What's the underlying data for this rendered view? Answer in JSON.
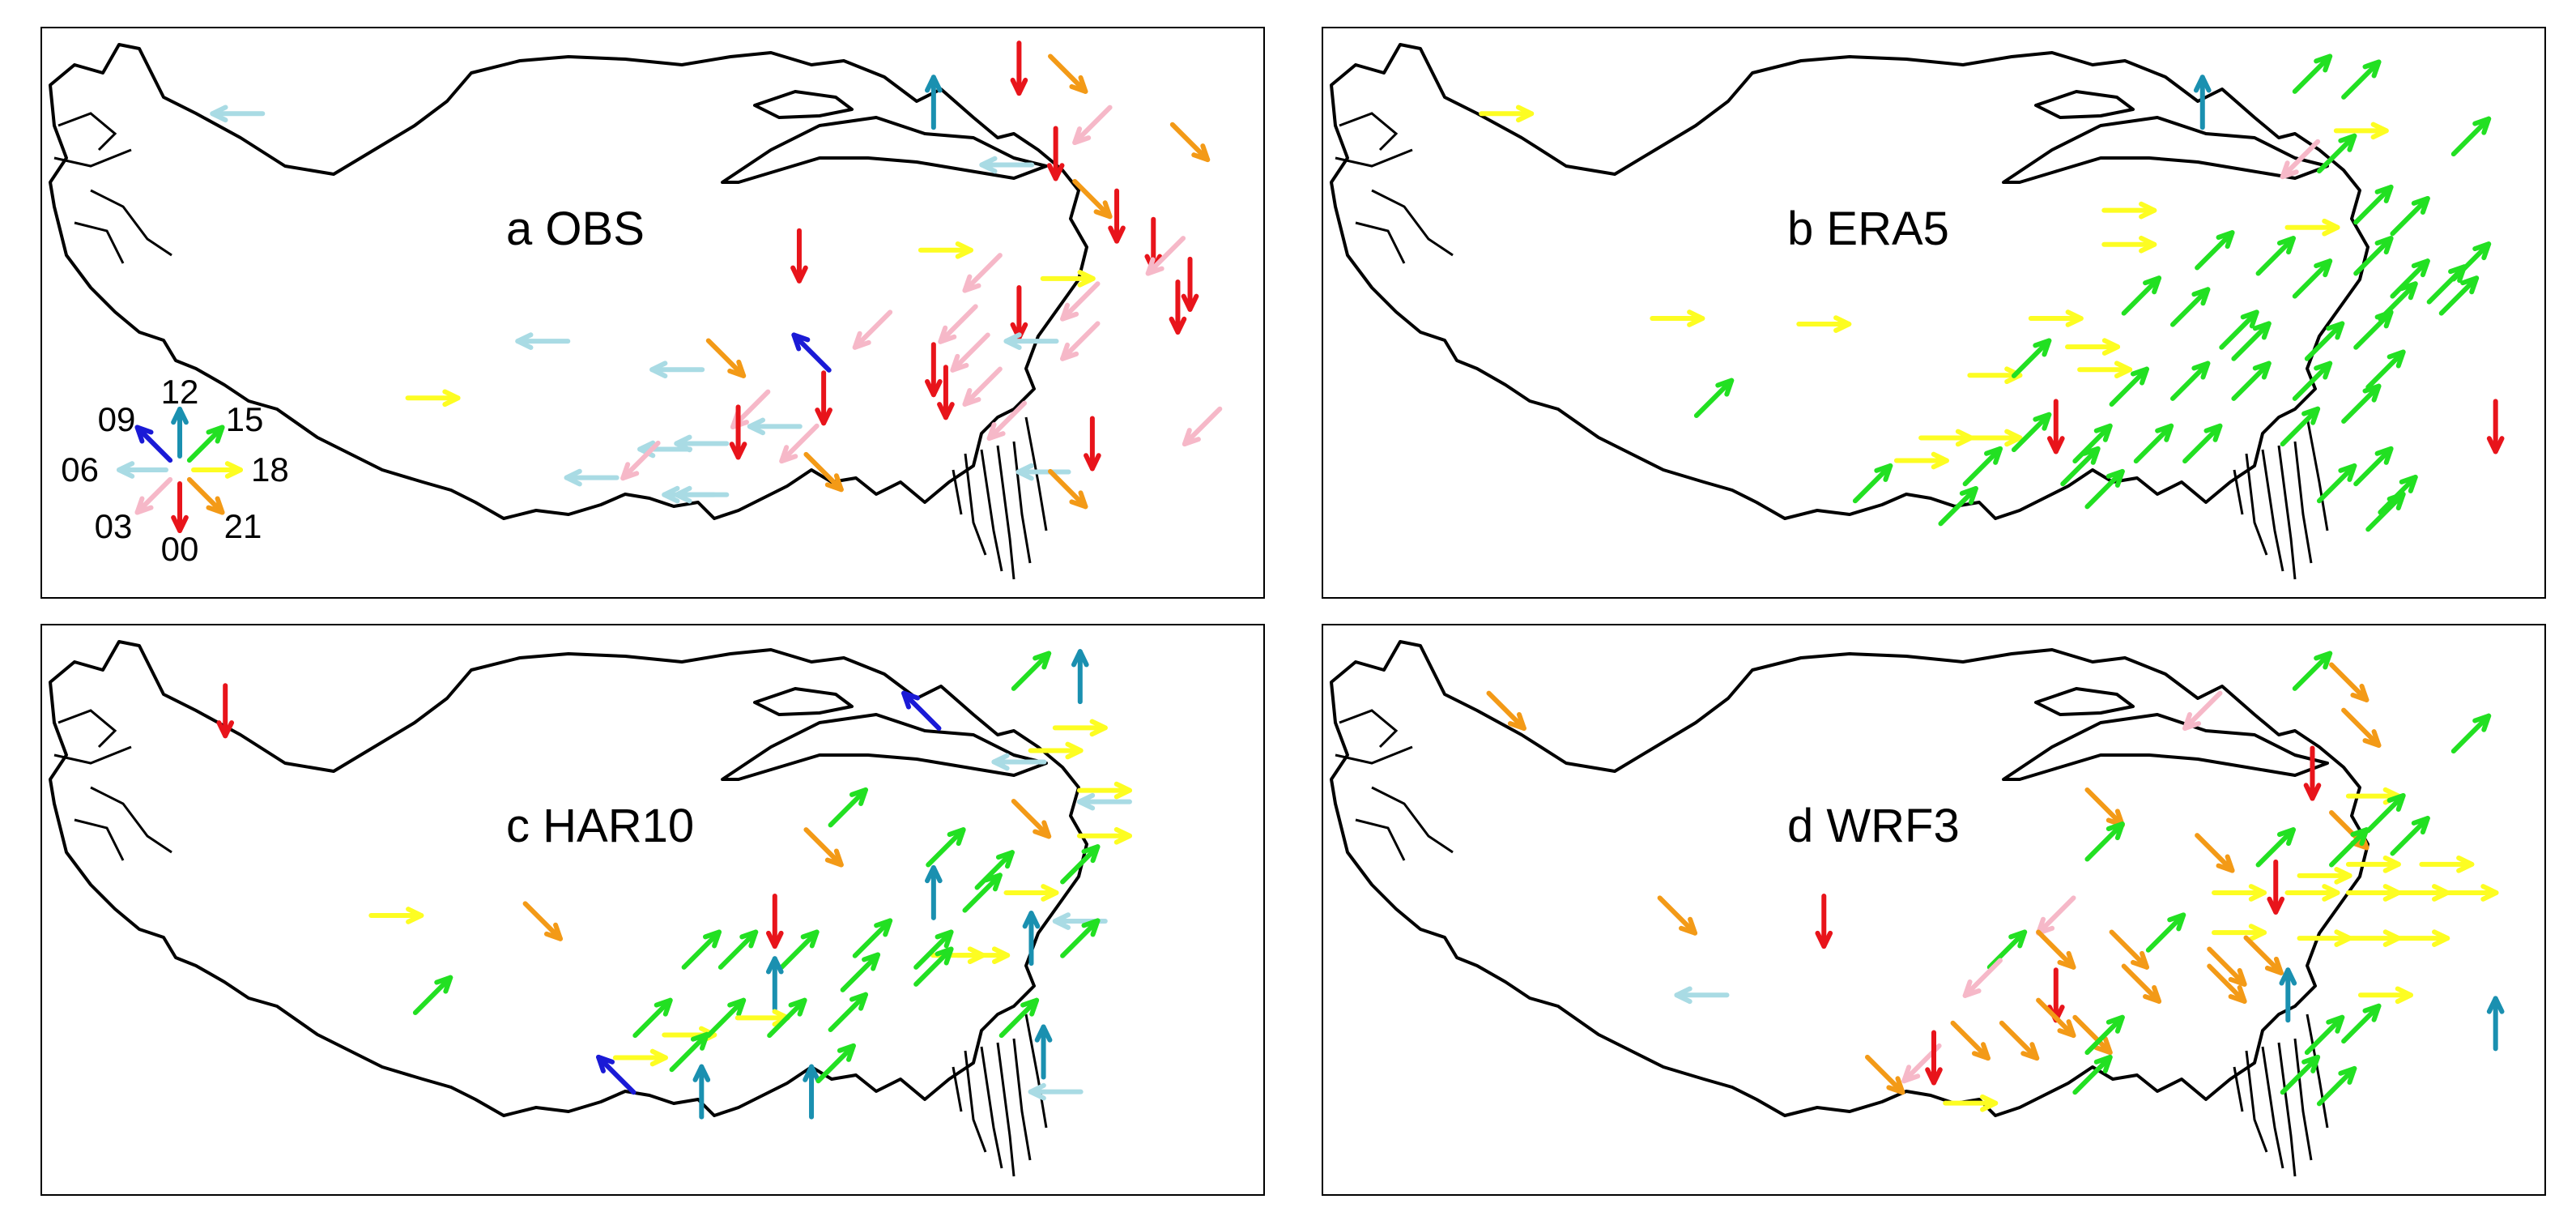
{
  "colors": {
    "00": "#e8141b",
    "03": "#f6b8c8",
    "06": "#a9dbe4",
    "09": "#1a1ad6",
    "12": "#1a90b0",
    "15": "#22e022",
    "18": "#fdfd22",
    "21": "#f39a17"
  },
  "legend": {
    "items": [
      {
        "hour": "00",
        "label": "00"
      },
      {
        "hour": "03",
        "label": "03"
      },
      {
        "hour": "06",
        "label": "06"
      },
      {
        "hour": "09",
        "label": "09"
      },
      {
        "hour": "12",
        "label": "12"
      },
      {
        "hour": "15",
        "label": "15"
      },
      {
        "hour": "18",
        "label": "18"
      },
      {
        "hour": "21",
        "label": "21"
      }
    ]
  },
  "panels": [
    {
      "id": "a",
      "title": "a OBS",
      "arrows": [
        [
          "06",
          0.16,
          0.15
        ],
        [
          "12",
          0.73,
          0.13
        ],
        [
          "00",
          0.8,
          0.07
        ],
        [
          "21",
          0.84,
          0.08
        ],
        [
          "03",
          0.86,
          0.17
        ],
        [
          "21",
          0.94,
          0.2
        ],
        [
          "00",
          0.83,
          0.22
        ],
        [
          "06",
          0.79,
          0.24
        ],
        [
          "21",
          0.86,
          0.3
        ],
        [
          "00",
          0.88,
          0.33
        ],
        [
          "00",
          0.91,
          0.38
        ],
        [
          "03",
          0.92,
          0.4
        ],
        [
          "00",
          0.62,
          0.4
        ],
        [
          "18",
          0.74,
          0.39
        ],
        [
          "03",
          0.77,
          0.43
        ],
        [
          "00",
          0.94,
          0.45
        ],
        [
          "18",
          0.84,
          0.44
        ],
        [
          "03",
          0.85,
          0.48
        ],
        [
          "00",
          0.8,
          0.5
        ],
        [
          "00",
          0.93,
          0.49
        ],
        [
          "06",
          0.41,
          0.55
        ],
        [
          "03",
          0.75,
          0.52
        ],
        [
          "03",
          0.68,
          0.53
        ],
        [
          "09",
          0.63,
          0.57
        ],
        [
          "21",
          0.56,
          0.58
        ],
        [
          "03",
          0.76,
          0.57
        ],
        [
          "06",
          0.81,
          0.55
        ],
        [
          "03",
          0.85,
          0.55
        ],
        [
          "06",
          0.52,
          0.6
        ],
        [
          "00",
          0.73,
          0.6
        ],
        [
          "00",
          0.64,
          0.65
        ],
        [
          "03",
          0.77,
          0.63
        ],
        [
          "03",
          0.58,
          0.67
        ],
        [
          "00",
          0.74,
          0.64
        ],
        [
          "06",
          0.6,
          0.7
        ],
        [
          "00",
          0.57,
          0.71
        ],
        [
          "06",
          0.54,
          0.73
        ],
        [
          "18",
          0.32,
          0.65
        ],
        [
          "03",
          0.79,
          0.69
        ],
        [
          "03",
          0.95,
          0.7
        ],
        [
          "06",
          0.51,
          0.74
        ],
        [
          "03",
          0.62,
          0.73
        ],
        [
          "00",
          0.86,
          0.73
        ],
        [
          "21",
          0.64,
          0.78
        ],
        [
          "06",
          0.82,
          0.78
        ],
        [
          "03",
          0.49,
          0.76
        ],
        [
          "06",
          0.45,
          0.79
        ],
        [
          "06",
          0.53,
          0.82
        ],
        [
          "21",
          0.84,
          0.81
        ],
        [
          "06",
          0.54,
          0.82
        ]
      ]
    },
    {
      "id": "b",
      "title": "b ERA5",
      "arrows": [
        [
          "18",
          0.15,
          0.15
        ],
        [
          "12",
          0.72,
          0.13
        ],
        [
          "15",
          0.81,
          0.08
        ],
        [
          "15",
          0.85,
          0.09
        ],
        [
          "18",
          0.85,
          0.18
        ],
        [
          "15",
          0.94,
          0.19
        ],
        [
          "03",
          0.8,
          0.23
        ],
        [
          "15",
          0.83,
          0.22
        ],
        [
          "18",
          0.66,
          0.32
        ],
        [
          "15",
          0.86,
          0.31
        ],
        [
          "15",
          0.89,
          0.33
        ],
        [
          "18",
          0.81,
          0.35
        ],
        [
          "18",
          0.66,
          0.38
        ],
        [
          "15",
          0.73,
          0.39
        ],
        [
          "15",
          0.78,
          0.4
        ],
        [
          "15",
          0.81,
          0.44
        ],
        [
          "15",
          0.86,
          0.4
        ],
        [
          "15",
          0.89,
          0.44
        ],
        [
          "15",
          0.92,
          0.45
        ],
        [
          "15",
          0.94,
          0.41
        ],
        [
          "18",
          0.29,
          0.51
        ],
        [
          "18",
          0.41,
          0.52
        ],
        [
          "18",
          0.6,
          0.51
        ],
        [
          "15",
          0.67,
          0.47
        ],
        [
          "15",
          0.71,
          0.49
        ],
        [
          "15",
          0.75,
          0.53
        ],
        [
          "15",
          0.82,
          0.55
        ],
        [
          "15",
          0.86,
          0.53
        ],
        [
          "15",
          0.88,
          0.48
        ],
        [
          "15",
          0.93,
          0.47
        ],
        [
          "18",
          0.63,
          0.56
        ],
        [
          "15",
          0.76,
          0.55
        ],
        [
          "18",
          0.55,
          0.61
        ],
        [
          "15",
          0.58,
          0.58
        ],
        [
          "18",
          0.64,
          0.6
        ],
        [
          "15",
          0.66,
          0.63
        ],
        [
          "15",
          0.71,
          0.62
        ],
        [
          "15",
          0.76,
          0.62
        ],
        [
          "15",
          0.81,
          0.62
        ],
        [
          "15",
          0.87,
          0.6
        ],
        [
          "15",
          0.32,
          0.65
        ],
        [
          "18",
          0.51,
          0.72
        ],
        [
          "18",
          0.55,
          0.72
        ],
        [
          "00",
          0.6,
          0.7
        ],
        [
          "15",
          0.58,
          0.71
        ],
        [
          "15",
          0.63,
          0.73
        ],
        [
          "15",
          0.68,
          0.73
        ],
        [
          "15",
          0.72,
          0.73
        ],
        [
          "15",
          0.8,
          0.7
        ],
        [
          "15",
          0.85,
          0.66
        ],
        [
          "00",
          0.96,
          0.7
        ],
        [
          "18",
          0.49,
          0.76
        ],
        [
          "15",
          0.54,
          0.77
        ],
        [
          "15",
          0.62,
          0.77
        ],
        [
          "15",
          0.86,
          0.77
        ],
        [
          "15",
          0.45,
          0.8
        ],
        [
          "15",
          0.52,
          0.84
        ],
        [
          "15",
          0.64,
          0.81
        ],
        [
          "15",
          0.83,
          0.8
        ],
        [
          "15",
          0.88,
          0.82
        ],
        [
          "15",
          0.87,
          0.85
        ]
      ]
    },
    {
      "id": "c",
      "title": "c HAR10",
      "arrows": [
        [
          "00",
          0.15,
          0.15
        ],
        [
          "09",
          0.72,
          0.15
        ],
        [
          "15",
          0.81,
          0.08
        ],
        [
          "12",
          0.85,
          0.09
        ],
        [
          "18",
          0.85,
          0.18
        ],
        [
          "06",
          0.8,
          0.24
        ],
        [
          "18",
          0.83,
          0.22
        ],
        [
          "18",
          0.87,
          0.29
        ],
        [
          "06",
          0.87,
          0.31
        ],
        [
          "15",
          0.66,
          0.32
        ],
        [
          "21",
          0.81,
          0.34
        ],
        [
          "21",
          0.64,
          0.39
        ],
        [
          "18",
          0.87,
          0.37
        ],
        [
          "15",
          0.74,
          0.39
        ],
        [
          "15",
          0.78,
          0.43
        ],
        [
          "15",
          0.85,
          0.42
        ],
        [
          "12",
          0.73,
          0.47
        ],
        [
          "15",
          0.77,
          0.47
        ],
        [
          "18",
          0.81,
          0.47
        ],
        [
          "18",
          0.29,
          0.51
        ],
        [
          "21",
          0.41,
          0.52
        ],
        [
          "00",
          0.6,
          0.52
        ],
        [
          "06",
          0.85,
          0.52
        ],
        [
          "12",
          0.81,
          0.55
        ],
        [
          "15",
          0.85,
          0.55
        ],
        [
          "15",
          0.54,
          0.57
        ],
        [
          "15",
          0.57,
          0.57
        ],
        [
          "15",
          0.62,
          0.57
        ],
        [
          "15",
          0.68,
          0.55
        ],
        [
          "18",
          0.75,
          0.58
        ],
        [
          "15",
          0.73,
          0.57
        ],
        [
          "18",
          0.77,
          0.58
        ],
        [
          "12",
          0.6,
          0.63
        ],
        [
          "15",
          0.67,
          0.61
        ],
        [
          "15",
          0.73,
          0.6
        ],
        [
          "15",
          0.32,
          0.65
        ],
        [
          "15",
          0.5,
          0.69
        ],
        [
          "18",
          0.53,
          0.72
        ],
        [
          "15",
          0.56,
          0.69
        ],
        [
          "18",
          0.59,
          0.69
        ],
        [
          "15",
          0.61,
          0.69
        ],
        [
          "15",
          0.66,
          0.68
        ],
        [
          "15",
          0.8,
          0.69
        ],
        [
          "09",
          0.47,
          0.79
        ],
        [
          "18",
          0.49,
          0.76
        ],
        [
          "15",
          0.53,
          0.75
        ],
        [
          "12",
          0.54,
          0.82
        ],
        [
          "12",
          0.63,
          0.82
        ],
        [
          "15",
          0.65,
          0.77
        ],
        [
          "12",
          0.82,
          0.75
        ],
        [
          "06",
          0.83,
          0.82
        ]
      ]
    },
    {
      "id": "d",
      "title": "d WRF3",
      "arrows": [
        [
          "21",
          0.15,
          0.15
        ],
        [
          "03",
          0.72,
          0.15
        ],
        [
          "15",
          0.81,
          0.08
        ],
        [
          "21",
          0.84,
          0.1
        ],
        [
          "21",
          0.85,
          0.18
        ],
        [
          "15",
          0.94,
          0.19
        ],
        [
          "00",
          0.81,
          0.26
        ],
        [
          "18",
          0.86,
          0.3
        ],
        [
          "15",
          0.87,
          0.33
        ],
        [
          "21",
          0.64,
          0.32
        ],
        [
          "21",
          0.73,
          0.4
        ],
        [
          "15",
          0.78,
          0.39
        ],
        [
          "21",
          0.84,
          0.36
        ],
        [
          "15",
          0.84,
          0.39
        ],
        [
          "15",
          0.89,
          0.37
        ],
        [
          "18",
          0.82,
          0.44
        ],
        [
          "18",
          0.86,
          0.42
        ],
        [
          "18",
          0.92,
          0.42
        ],
        [
          "15",
          0.64,
          0.38
        ],
        [
          "18",
          0.75,
          0.47
        ],
        [
          "18",
          0.81,
          0.47
        ],
        [
          "18",
          0.86,
          0.47
        ],
        [
          "18",
          0.9,
          0.47
        ],
        [
          "18",
          0.94,
          0.47
        ],
        [
          "21",
          0.29,
          0.51
        ],
        [
          "00",
          0.41,
          0.52
        ],
        [
          "03",
          0.6,
          0.51
        ],
        [
          "00",
          0.78,
          0.46
        ],
        [
          "15",
          0.56,
          0.57
        ],
        [
          "21",
          0.6,
          0.57
        ],
        [
          "21",
          0.66,
          0.57
        ],
        [
          "15",
          0.69,
          0.54
        ],
        [
          "18",
          0.75,
          0.54
        ],
        [
          "21",
          0.77,
          0.58
        ],
        [
          "18",
          0.82,
          0.55
        ],
        [
          "18",
          0.86,
          0.55
        ],
        [
          "18",
          0.9,
          0.55
        ],
        [
          "03",
          0.54,
          0.62
        ],
        [
          "21",
          0.67,
          0.63
        ],
        [
          "21",
          0.74,
          0.6
        ],
        [
          "21",
          0.74,
          0.63
        ],
        [
          "12",
          0.79,
          0.65
        ],
        [
          "18",
          0.87,
          0.65
        ],
        [
          "06",
          0.31,
          0.65
        ],
        [
          "00",
          0.6,
          0.65
        ],
        [
          "21",
          0.6,
          0.69
        ],
        [
          "21",
          0.63,
          0.72
        ],
        [
          "21",
          0.53,
          0.73
        ],
        [
          "21",
          0.57,
          0.73
        ],
        [
          "15",
          0.64,
          0.72
        ],
        [
          "15",
          0.82,
          0.72
        ],
        [
          "15",
          0.85,
          0.7
        ],
        [
          "12",
          0.96,
          0.7
        ],
        [
          "03",
          0.49,
          0.77
        ],
        [
          "00",
          0.5,
          0.76
        ],
        [
          "21",
          0.46,
          0.79
        ],
        [
          "15",
          0.63,
          0.79
        ],
        [
          "15",
          0.8,
          0.79
        ],
        [
          "18",
          0.53,
          0.84
        ],
        [
          "15",
          0.83,
          0.81
        ]
      ]
    }
  ]
}
